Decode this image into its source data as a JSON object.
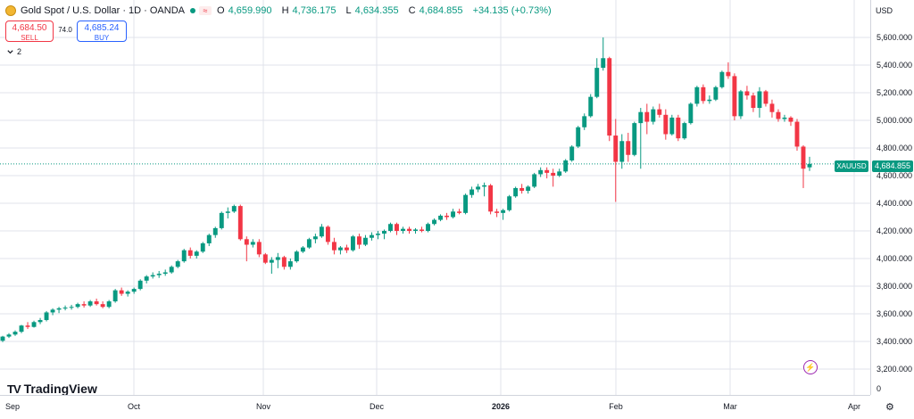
{
  "header": {
    "symbol_title": "Gold Spot / U.S. Dollar · 1D · OANDA",
    "ohlc": [
      {
        "k": "O",
        "v": "4,659.990"
      },
      {
        "k": "H",
        "v": "4,736.175"
      },
      {
        "k": "L",
        "v": "4,634.355"
      },
      {
        "k": "C",
        "v": "4,684.855"
      }
    ],
    "change": "+34.135 (+0.73%)"
  },
  "trade": {
    "sell_price": "4,684.50",
    "sell_label": "SELL",
    "spread": "74.0",
    "buy_price": "4,685.24",
    "buy_label": "BUY"
  },
  "indicators_toggle": {
    "count": "2"
  },
  "price_axis": {
    "currency": "USD",
    "labels": [
      "5,600.000",
      "5,400.000",
      "5,200.000",
      "5,000.000",
      "4,800.000",
      "4,600.000",
      "4,400.000",
      "4,200.000",
      "4,000.000",
      "3,800.000",
      "3,600.000",
      "3,400.000",
      "3,200.000",
      "0"
    ],
    "last_price": "4,684.855"
  },
  "symbol_tag": "XAUUSD",
  "time_axis": {
    "labels": [
      {
        "text": "Sep",
        "bold": false
      },
      {
        "text": "Oct",
        "bold": false
      },
      {
        "text": "Nov",
        "bold": false
      },
      {
        "text": "Dec",
        "bold": false
      },
      {
        "text": "2026",
        "bold": true
      },
      {
        "text": "Feb",
        "bold": false
      },
      {
        "text": "Mar",
        "bold": false
      },
      {
        "text": "Apr",
        "bold": false
      }
    ]
  },
  "branding": {
    "name": "TradingView"
  },
  "colors": {
    "up": "#089981",
    "down": "#f23645",
    "grid": "#e0e3eb",
    "last_price_line": "#089981"
  },
  "icons": {
    "symbol": "gold-coin-icon",
    "alert": "lightning-icon",
    "settings": "gear-icon",
    "collapse": "chevron-down-icon"
  },
  "chart_data": {
    "type": "candlestick",
    "title": "Gold Spot / U.S. Dollar · 1D · OANDA",
    "ylabel": "USD",
    "ylim": [
      3200,
      5700
    ],
    "grid": true,
    "last_price": 4684.855,
    "candles": [
      [
        3405,
        3440,
        3395,
        3435
      ],
      [
        3435,
        3460,
        3425,
        3450
      ],
      [
        3450,
        3480,
        3440,
        3470
      ],
      [
        3470,
        3520,
        3460,
        3515
      ],
      [
        3515,
        3540,
        3490,
        3505
      ],
      [
        3505,
        3550,
        3500,
        3540
      ],
      [
        3540,
        3570,
        3525,
        3555
      ],
      [
        3555,
        3620,
        3545,
        3610
      ],
      [
        3610,
        3640,
        3590,
        3630
      ],
      [
        3630,
        3650,
        3605,
        3640
      ],
      [
        3640,
        3660,
        3625,
        3645
      ],
      [
        3645,
        3665,
        3630,
        3650
      ],
      [
        3650,
        3680,
        3640,
        3670
      ],
      [
        3670,
        3690,
        3645,
        3660
      ],
      [
        3660,
        3700,
        3650,
        3690
      ],
      [
        3690,
        3710,
        3660,
        3670
      ],
      [
        3670,
        3690,
        3640,
        3650
      ],
      [
        3650,
        3700,
        3640,
        3690
      ],
      [
        3690,
        3780,
        3680,
        3770
      ],
      [
        3770,
        3790,
        3730,
        3745
      ],
      [
        3745,
        3770,
        3725,
        3760
      ],
      [
        3760,
        3790,
        3745,
        3780
      ],
      [
        3780,
        3850,
        3770,
        3840
      ],
      [
        3840,
        3880,
        3820,
        3870
      ],
      [
        3870,
        3900,
        3855,
        3880
      ],
      [
        3880,
        3910,
        3860,
        3890
      ],
      [
        3890,
        3920,
        3875,
        3900
      ],
      [
        3900,
        3950,
        3890,
        3940
      ],
      [
        3940,
        3990,
        3930,
        3980
      ],
      [
        3980,
        4070,
        3970,
        4060
      ],
      [
        4060,
        4080,
        4000,
        4020
      ],
      [
        4020,
        4060,
        4000,
        4050
      ],
      [
        4050,
        4120,
        4040,
        4110
      ],
      [
        4110,
        4180,
        4090,
        4170
      ],
      [
        4170,
        4230,
        4150,
        4220
      ],
      [
        4220,
        4340,
        4210,
        4330
      ],
      [
        4330,
        4370,
        4290,
        4340
      ],
      [
        4340,
        4390,
        4330,
        4380
      ],
      [
        4380,
        4390,
        4130,
        4140
      ],
      [
        4140,
        4160,
        3980,
        4100
      ],
      [
        4100,
        4140,
        4080,
        4120
      ],
      [
        4120,
        4140,
        4010,
        4030
      ],
      [
        4030,
        4040,
        3960,
        3970
      ],
      [
        3970,
        4010,
        3890,
        3990
      ],
      [
        3990,
        4040,
        3930,
        4010
      ],
      [
        4010,
        4020,
        3920,
        3940
      ],
      [
        3940,
        4000,
        3920,
        3980
      ],
      [
        3980,
        4060,
        3970,
        4050
      ],
      [
        4050,
        4090,
        4040,
        4080
      ],
      [
        4080,
        4150,
        4070,
        4140
      ],
      [
        4140,
        4180,
        4110,
        4160
      ],
      [
        4160,
        4250,
        4150,
        4230
      ],
      [
        4230,
        4240,
        4100,
        4120
      ],
      [
        4120,
        4150,
        4030,
        4060
      ],
      [
        4060,
        4090,
        4030,
        4080
      ],
      [
        4080,
        4100,
        4040,
        4060
      ],
      [
        4060,
        4170,
        4050,
        4160
      ],
      [
        4160,
        4180,
        4070,
        4100
      ],
      [
        4100,
        4170,
        4090,
        4150
      ],
      [
        4150,
        4190,
        4130,
        4170
      ],
      [
        4170,
        4200,
        4140,
        4180
      ],
      [
        4180,
        4210,
        4140,
        4200
      ],
      [
        4200,
        4260,
        4190,
        4250
      ],
      [
        4250,
        4260,
        4170,
        4200
      ],
      [
        4200,
        4230,
        4180,
        4215
      ],
      [
        4215,
        4230,
        4180,
        4200
      ],
      [
        4200,
        4220,
        4180,
        4210
      ],
      [
        4210,
        4230,
        4190,
        4200
      ],
      [
        4200,
        4260,
        4190,
        4250
      ],
      [
        4250,
        4290,
        4240,
        4280
      ],
      [
        4280,
        4320,
        4270,
        4310
      ],
      [
        4310,
        4330,
        4280,
        4300
      ],
      [
        4300,
        4360,
        4290,
        4340
      ],
      [
        4340,
        4360,
        4320,
        4330
      ],
      [
        4330,
        4470,
        4320,
        4460
      ],
      [
        4460,
        4520,
        4440,
        4500
      ],
      [
        4500,
        4540,
        4480,
        4520
      ],
      [
        4520,
        4550,
        4450,
        4530
      ],
      [
        4530,
        4540,
        4320,
        4340
      ],
      [
        4340,
        4360,
        4300,
        4330
      ],
      [
        4330,
        4360,
        4280,
        4350
      ],
      [
        4350,
        4460,
        4340,
        4450
      ],
      [
        4450,
        4520,
        4440,
        4510
      ],
      [
        4510,
        4540,
        4470,
        4490
      ],
      [
        4490,
        4530,
        4470,
        4520
      ],
      [
        4520,
        4620,
        4510,
        4610
      ],
      [
        4610,
        4660,
        4590,
        4640
      ],
      [
        4640,
        4660,
        4580,
        4620
      ],
      [
        4620,
        4650,
        4520,
        4600
      ],
      [
        4600,
        4650,
        4590,
        4630
      ],
      [
        4630,
        4720,
        4620,
        4710
      ],
      [
        4710,
        4820,
        4700,
        4810
      ],
      [
        4810,
        4960,
        4800,
        4950
      ],
      [
        4950,
        5050,
        4930,
        5030
      ],
      [
        5030,
        5190,
        5020,
        5170
      ],
      [
        5170,
        5450,
        5160,
        5380
      ],
      [
        5380,
        5600,
        5360,
        5450
      ],
      [
        5450,
        5460,
        4850,
        4890
      ],
      [
        4890,
        5010,
        4410,
        4700
      ],
      [
        4700,
        4900,
        4650,
        4850
      ],
      [
        4850,
        4910,
        4700,
        4750
      ],
      [
        4750,
        4990,
        4740,
        4980
      ],
      [
        4980,
        5090,
        4650,
        5060
      ],
      [
        5060,
        5120,
        4900,
        4990
      ],
      [
        4990,
        5100,
        4970,
        5080
      ],
      [
        5080,
        5120,
        5020,
        5040
      ],
      [
        5040,
        5080,
        4860,
        4900
      ],
      [
        4900,
        5040,
        4890,
        5020
      ],
      [
        5020,
        5040,
        4850,
        4870
      ],
      [
        4870,
        4990,
        4860,
        4980
      ],
      [
        4980,
        5130,
        4970,
        5120
      ],
      [
        5120,
        5250,
        5100,
        5240
      ],
      [
        5240,
        5260,
        5120,
        5140
      ],
      [
        5140,
        5180,
        5120,
        5150
      ],
      [
        5150,
        5250,
        5140,
        5240
      ],
      [
        5240,
        5360,
        5230,
        5350
      ],
      [
        5350,
        5420,
        5300,
        5320
      ],
      [
        5320,
        5340,
        5000,
        5030
      ],
      [
        5030,
        5220,
        5010,
        5210
      ],
      [
        5210,
        5250,
        5150,
        5180
      ],
      [
        5180,
        5200,
        5060,
        5090
      ],
      [
        5090,
        5240,
        5020,
        5210
      ],
      [
        5210,
        5220,
        5100,
        5120
      ],
      [
        5120,
        5150,
        5020,
        5060
      ],
      [
        5060,
        5080,
        4990,
        5010
      ],
      [
        5010,
        5040,
        4990,
        5020
      ],
      [
        5020,
        5030,
        4960,
        4990
      ],
      [
        4990,
        5010,
        4780,
        4810
      ],
      [
        4810,
        4820,
        4510,
        4650
      ],
      [
        4660,
        4736,
        4634,
        4685
      ]
    ]
  }
}
